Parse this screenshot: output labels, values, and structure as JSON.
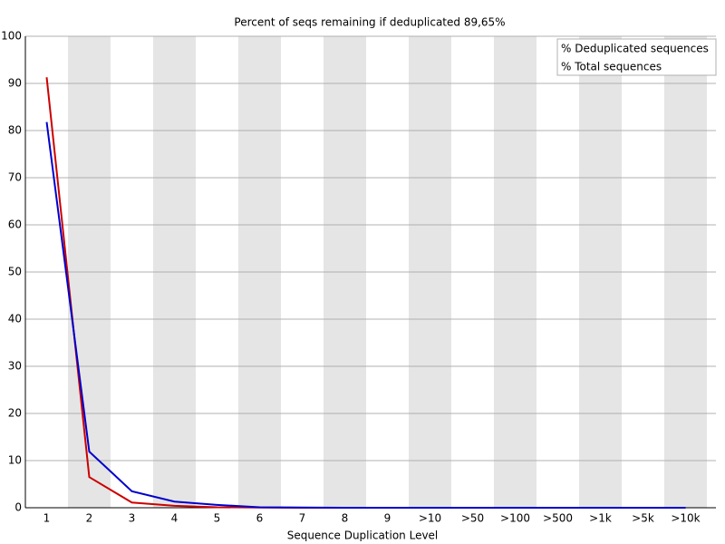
{
  "chart_data": {
    "type": "line",
    "title": "Percent of seqs remaining if deduplicated 89,65%",
    "x_label": "Sequence Duplication Level",
    "categories": [
      "1",
      "2",
      "3",
      "4",
      "5",
      "6",
      "7",
      "8",
      "9",
      ">10",
      ">50",
      ">100",
      ">500",
      ">1k",
      ">5k",
      ">10k"
    ],
    "series": [
      {
        "name": "% Deduplicated sequences",
        "color": "#cc0000",
        "values": [
          91.3,
          6.5,
          1.1,
          0.4,
          0.1,
          0.05,
          0,
          0,
          0,
          0,
          0,
          0,
          0,
          0,
          0,
          0
        ]
      },
      {
        "name": "% Total sequences",
        "color": "#0000cc",
        "values": [
          81.8,
          11.9,
          3.5,
          1.3,
          0.6,
          0.1,
          0.05,
          0,
          0,
          0,
          0,
          0,
          0,
          0,
          0,
          0
        ]
      }
    ],
    "ylim": [
      0,
      100
    ],
    "yticks": [
      0,
      10,
      20,
      30,
      40,
      50,
      60,
      70,
      80,
      90,
      100
    ],
    "grid": true,
    "legend": "top-right"
  }
}
